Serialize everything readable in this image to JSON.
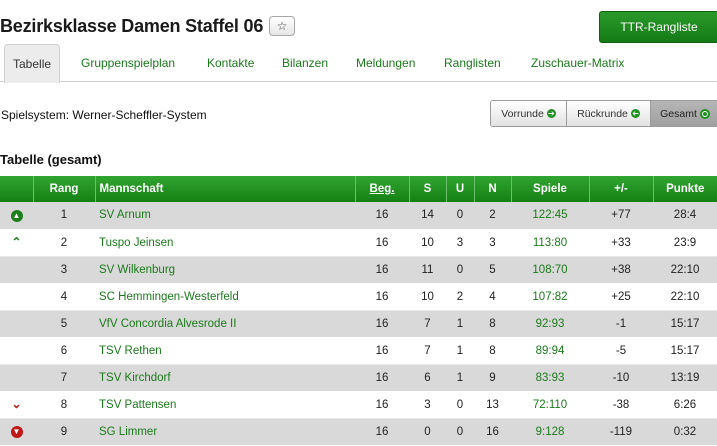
{
  "header": {
    "title": "Bezirksklasse Damen Staffel 06",
    "star_icon": "star-outline-icon",
    "ttr_button": "TTR-Rangliste"
  },
  "tabs": [
    {
      "label": "Tabelle",
      "active": true
    },
    {
      "label": "Gruppenspielplan"
    },
    {
      "label": "Kontakte"
    },
    {
      "label": "Bilanzen"
    },
    {
      "label": "Meldungen"
    },
    {
      "label": "Ranglisten"
    },
    {
      "label": "Zuschauer-Matrix"
    }
  ],
  "spielsystem": "Spielsystem: Werner-Scheffler-System",
  "view_toggle": {
    "vorrunde": "Vorrunde",
    "rueckrunde": "Rückrunde",
    "gesamt": "Gesamt",
    "active": "gesamt"
  },
  "section_title": "Tabelle (gesamt)",
  "table": {
    "headers": {
      "trend": "",
      "rang": "Rang",
      "mannschaft": "Mannschaft",
      "beg": "Beg.",
      "s": "S",
      "u": "U",
      "n": "N",
      "spiele": "Spiele",
      "diff": "+/-",
      "punkte": "Punkte"
    },
    "rows": [
      {
        "trend": "up-circle",
        "rang": "1",
        "mannschaft": "SV Arnum",
        "beg": "16",
        "s": "14",
        "u": "0",
        "n": "2",
        "spiele": "122:45",
        "diff": "+77",
        "punkte": "28:4"
      },
      {
        "trend": "up-chevron",
        "rang": "2",
        "mannschaft": "Tuspo Jeinsen",
        "beg": "16",
        "s": "10",
        "u": "3",
        "n": "3",
        "spiele": "113:80",
        "diff": "+33",
        "punkte": "23:9"
      },
      {
        "trend": "",
        "rang": "3",
        "mannschaft": "SV Wilkenburg",
        "beg": "16",
        "s": "11",
        "u": "0",
        "n": "5",
        "spiele": "108:70",
        "diff": "+38",
        "punkte": "22:10"
      },
      {
        "trend": "",
        "rang": "4",
        "mannschaft": "SC Hemmingen-Westerfeld",
        "beg": "16",
        "s": "10",
        "u": "2",
        "n": "4",
        "spiele": "107:82",
        "diff": "+25",
        "punkte": "22:10"
      },
      {
        "trend": "",
        "rang": "5",
        "mannschaft": "VfV Concordia Alvesrode II",
        "beg": "16",
        "s": "7",
        "u": "1",
        "n": "8",
        "spiele": "92:93",
        "diff": "-1",
        "punkte": "15:17"
      },
      {
        "trend": "",
        "rang": "6",
        "mannschaft": "TSV Rethen",
        "beg": "16",
        "s": "7",
        "u": "1",
        "n": "8",
        "spiele": "89:94",
        "diff": "-5",
        "punkte": "15:17"
      },
      {
        "trend": "",
        "rang": "7",
        "mannschaft": "TSV Kirchdorf",
        "beg": "16",
        "s": "6",
        "u": "1",
        "n": "9",
        "spiele": "83:93",
        "diff": "-10",
        "punkte": "13:19"
      },
      {
        "trend": "down-chevron",
        "rang": "8",
        "mannschaft": "TSV Pattensen",
        "beg": "16",
        "s": "3",
        "u": "0",
        "n": "13",
        "spiele": "72:110",
        "diff": "-38",
        "punkte": "6:26"
      },
      {
        "trend": "down-circle",
        "rang": "9",
        "mannschaft": "SG Limmer",
        "beg": "16",
        "s": "0",
        "u": "0",
        "n": "16",
        "spiele": "9:128",
        "diff": "-119",
        "punkte": "0:32"
      }
    ]
  }
}
